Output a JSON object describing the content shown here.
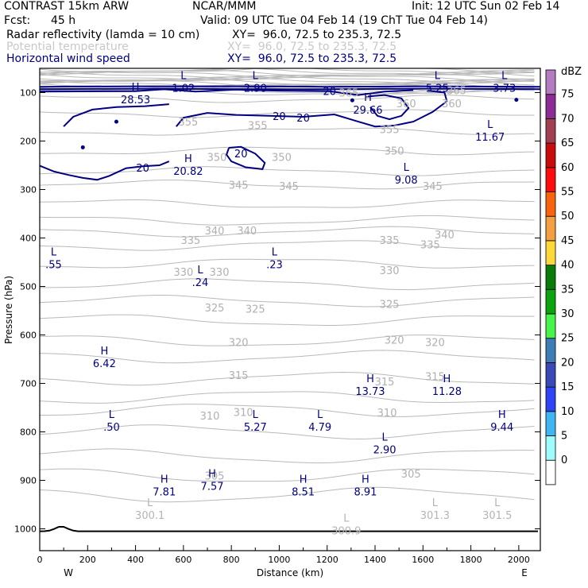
{
  "header": {
    "model": "CONTRAST 15km ARW",
    "org": "NCAR/MMM",
    "init": "Init: 12 UTC Sun 02 Feb 14",
    "fcst_label": "Fcst:",
    "fcst_value": "45 h",
    "valid": "Valid: 09 UTC Tue 04 Feb 14 (19 ChT Tue 04 Feb 14)",
    "fields": [
      {
        "name": "Radar reflectivity (lamda = 10 cm)",
        "xy": "XY=  96.0, 72.5 to 235.3, 72.5",
        "color": "#000000"
      },
      {
        "name": "Potential temperature",
        "xy": "XY=  96.0, 72.5 to 235.3, 72.5",
        "color": "#c8c8c8"
      },
      {
        "name": "Horizontal wind speed",
        "xy": "XY=  96.0, 72.5 to 235.3, 72.5",
        "color": "#000080"
      }
    ]
  },
  "chart_data": {
    "type": "cross-section",
    "xlabel": "Distance (km)",
    "ylabel": "Pressure (hPa)",
    "xlim": [
      0,
      2090
    ],
    "ylim": [
      1045,
      50
    ],
    "x_ticks": [
      0,
      200,
      400,
      600,
      800,
      1000,
      1200,
      1400,
      1600,
      1800,
      2000
    ],
    "y_ticks": [
      100,
      200,
      300,
      400,
      500,
      600,
      700,
      800,
      900,
      1000
    ],
    "x_ends": {
      "left": "W",
      "right": "E"
    },
    "colorbar": {
      "unit": "dBZ",
      "levels": [
        0,
        5,
        10,
        15,
        20,
        25,
        30,
        35,
        40,
        45,
        50,
        55,
        60,
        65,
        70,
        75
      ],
      "colors": [
        "#ffffff",
        "#9ffcfc",
        "#3fb6f4",
        "#2f44f4",
        "#3a48b8",
        "#3e7eb5",
        "#46f44a",
        "#0ca40c",
        "#0a7a0a",
        "#fcd83a",
        "#f4a040",
        "#f8640c",
        "#fc0c0c",
        "#c80c0c",
        "#a04052",
        "#8c2c94",
        "#b47cc0"
      ]
    },
    "theta_labels": [
      {
        "text": "365",
        "x": 1290,
        "p": 100
      },
      {
        "text": "365",
        "x": 1740,
        "p": 95
      },
      {
        "text": "360",
        "x": 1530,
        "p": 122
      },
      {
        "text": "360",
        "x": 1720,
        "p": 122
      },
      {
        "text": "355",
        "x": 620,
        "p": 160
      },
      {
        "text": "355",
        "x": 910,
        "p": 167
      },
      {
        "text": "355",
        "x": 1460,
        "p": 175
      },
      {
        "text": "350",
        "x": 740,
        "p": 233
      },
      {
        "text": "350",
        "x": 1010,
        "p": 233
      },
      {
        "text": "350",
        "x": 1480,
        "p": 220
      },
      {
        "text": "345",
        "x": 830,
        "p": 290
      },
      {
        "text": "345",
        "x": 1040,
        "p": 293
      },
      {
        "text": "345",
        "x": 1640,
        "p": 293
      },
      {
        "text": "340",
        "x": 730,
        "p": 384
      },
      {
        "text": "340",
        "x": 865,
        "p": 384
      },
      {
        "text": "340",
        "x": 1690,
        "p": 393
      },
      {
        "text": "335",
        "x": 630,
        "p": 404
      },
      {
        "text": "335",
        "x": 1460,
        "p": 404
      },
      {
        "text": "335",
        "x": 1630,
        "p": 413
      },
      {
        "text": "330",
        "x": 600,
        "p": 470
      },
      {
        "text": "330",
        "x": 750,
        "p": 470
      },
      {
        "text": "330",
        "x": 1460,
        "p": 466
      },
      {
        "text": "325",
        "x": 730,
        "p": 543
      },
      {
        "text": "325",
        "x": 900,
        "p": 546
      },
      {
        "text": "325",
        "x": 1460,
        "p": 536
      },
      {
        "text": "320",
        "x": 830,
        "p": 615
      },
      {
        "text": "320",
        "x": 1480,
        "p": 610
      },
      {
        "text": "320",
        "x": 1650,
        "p": 615
      },
      {
        "text": "315",
        "x": 830,
        "p": 683
      },
      {
        "text": "315",
        "x": 1440,
        "p": 696
      },
      {
        "text": "315",
        "x": 1650,
        "p": 685
      },
      {
        "text": "310",
        "x": 710,
        "p": 766
      },
      {
        "text": "310",
        "x": 850,
        "p": 759
      },
      {
        "text": "310",
        "x": 1450,
        "p": 760
      },
      {
        "text": "305",
        "x": 730,
        "p": 890
      },
      {
        "text": "305",
        "x": 1550,
        "p": 886
      }
    ],
    "highs_lows": [
      {
        "type": "L",
        "value": "1.02",
        "x": 600,
        "p": 77,
        "color": "#000080"
      },
      {
        "type": "L",
        "value": "2.90",
        "x": 900,
        "p": 77,
        "color": "#000080"
      },
      {
        "type": "L",
        "value": "5.25",
        "x": 1660,
        "p": 77,
        "color": "#000080"
      },
      {
        "type": "L",
        "value": "3.73",
        "x": 1940,
        "p": 77,
        "color": "#000080"
      },
      {
        "type": "H",
        "value": "28.53",
        "x": 400,
        "p": 101,
        "color": "#000080"
      },
      {
        "type": "H",
        "value": "29.66",
        "x": 1370,
        "p": 122,
        "color": "#000080"
      },
      {
        "type": "L",
        "value": "11.67",
        "x": 1880,
        "p": 178,
        "color": "#000080"
      },
      {
        "type": "H",
        "value": "20.82",
        "x": 620,
        "p": 248,
        "color": "#000080"
      },
      {
        "type": "L",
        "value": "9.08",
        "x": 1530,
        "p": 266,
        "color": "#000080"
      },
      {
        "type": "L",
        "value": ".55",
        "x": 58,
        "p": 441,
        "color": "#000080"
      },
      {
        "type": "L",
        "value": ".23",
        "x": 980,
        "p": 441,
        "color": "#000080"
      },
      {
        "type": "L",
        "value": ".24",
        "x": 670,
        "p": 478,
        "color": "#000080"
      },
      {
        "type": "H",
        "value": "6.42",
        "x": 270,
        "p": 645,
        "color": "#000080"
      },
      {
        "type": "H",
        "value": "13.73",
        "x": 1380,
        "p": 702,
        "color": "#000080"
      },
      {
        "type": "H",
        "value": "11.28",
        "x": 1700,
        "p": 702,
        "color": "#000080"
      },
      {
        "type": "L",
        "value": ".50",
        "x": 300,
        "p": 776,
        "color": "#000080"
      },
      {
        "type": "L",
        "value": "5.27",
        "x": 900,
        "p": 776,
        "color": "#000080"
      },
      {
        "type": "L",
        "value": "4.79",
        "x": 1170,
        "p": 776,
        "color": "#000080"
      },
      {
        "type": "H",
        "value": "9.44",
        "x": 1930,
        "p": 776,
        "color": "#000080"
      },
      {
        "type": "L",
        "value": "2.90",
        "x": 1440,
        "p": 823,
        "color": "#000080"
      },
      {
        "type": "H",
        "value": "7.81",
        "x": 520,
        "p": 910,
        "color": "#000080"
      },
      {
        "type": "H",
        "value": "7.57",
        "x": 720,
        "p": 898,
        "color": "#000080"
      },
      {
        "type": "H",
        "value": "8.51",
        "x": 1100,
        "p": 910,
        "color": "#000080"
      },
      {
        "type": "H",
        "value": "8.91",
        "x": 1360,
        "p": 910,
        "color": "#000080"
      },
      {
        "type": "L",
        "value": "300.1",
        "x": 460,
        "p": 958,
        "color": "#b4b4b4"
      },
      {
        "type": "L",
        "value": "300.9",
        "x": 1280,
        "p": 990,
        "color": "#b4b4b4"
      },
      {
        "type": "L",
        "value": "301.3",
        "x": 1650,
        "p": 958,
        "color": "#b4b4b4"
      },
      {
        "type": "L",
        "value": "301.5",
        "x": 1910,
        "p": 958,
        "color": "#b4b4b4"
      }
    ],
    "wind_contour_labels": [
      {
        "text": "20",
        "x": 1210,
        "p": 97
      },
      {
        "text": "20",
        "x": 1000,
        "p": 148
      },
      {
        "text": "20",
        "x": 1100,
        "p": 152
      },
      {
        "text": "20",
        "x": 840,
        "p": 225
      },
      {
        "text": "20",
        "x": 430,
        "p": 255
      }
    ],
    "wind_contours": [
      [
        [
          0,
          88
        ],
        [
          400,
          87
        ],
        [
          800,
          87
        ],
        [
          1200,
          88
        ],
        [
          1600,
          87
        ],
        [
          2090,
          88
        ]
      ],
      [
        [
          0,
          93
        ],
        [
          400,
          92
        ],
        [
          800,
          93
        ],
        [
          1200,
          93
        ],
        [
          1600,
          92
        ],
        [
          2090,
          93
        ]
      ],
      [
        [
          0,
          98
        ],
        [
          400,
          97
        ],
        [
          520,
          93
        ],
        [
          650,
          98
        ],
        [
          820,
          94
        ],
        [
          1000,
          96
        ],
        [
          1210,
          97
        ],
        [
          1330,
          105
        ],
        [
          1440,
          98
        ],
        [
          1560,
          95
        ]
      ],
      [
        [
          0,
          251
        ],
        [
          60,
          263
        ],
        [
          120,
          270
        ],
        [
          180,
          276
        ],
        [
          240,
          280
        ],
        [
          290,
          272
        ],
        [
          360,
          256
        ],
        [
          430,
          252
        ],
        [
          500,
          250
        ],
        [
          540,
          242
        ]
      ],
      [
        [
          100,
          170
        ],
        [
          140,
          150
        ],
        [
          220,
          135
        ],
        [
          320,
          130
        ],
        [
          440,
          128
        ],
        [
          540,
          124
        ]
      ],
      [
        [
          570,
          170
        ],
        [
          600,
          152
        ],
        [
          700,
          142
        ],
        [
          820,
          146
        ],
        [
          960,
          148
        ],
        [
          1100,
          150
        ],
        [
          1230,
          145
        ],
        [
          1330,
          160
        ],
        [
          1400,
          170
        ],
        [
          1480,
          168
        ],
        [
          1560,
          160
        ],
        [
          1640,
          140
        ],
        [
          1700,
          118
        ],
        [
          1690,
          100
        ],
        [
          1620,
          96
        ]
      ],
      [
        [
          790,
          214
        ],
        [
          780,
          228
        ],
        [
          800,
          242
        ],
        [
          860,
          254
        ],
        [
          930,
          258
        ],
        [
          940,
          245
        ],
        [
          900,
          226
        ],
        [
          840,
          212
        ],
        [
          790,
          214
        ]
      ],
      [
        [
          1370,
          108
        ],
        [
          1440,
          105
        ],
        [
          1510,
          112
        ],
        [
          1540,
          132
        ],
        [
          1510,
          148
        ],
        [
          1460,
          155
        ],
        [
          1410,
          148
        ],
        [
          1380,
          130
        ]
      ]
    ],
    "wind_dots": [
      {
        "x": 320,
        "p": 160
      },
      {
        "x": 180,
        "p": 213
      },
      {
        "x": 1990,
        "p": 115
      },
      {
        "x": 1305,
        "p": 116
      }
    ]
  }
}
